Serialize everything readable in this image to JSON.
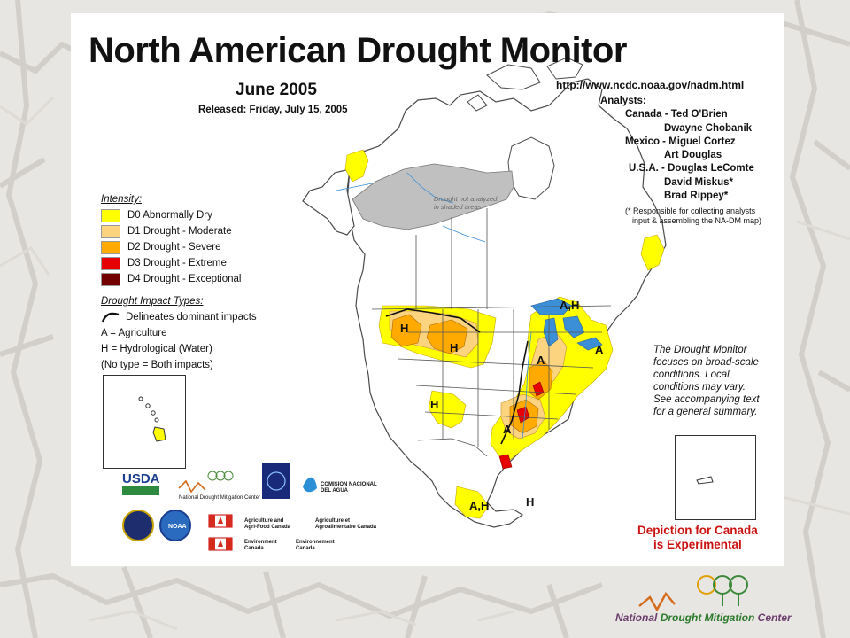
{
  "colors": {
    "d0": "#ffff00",
    "d1": "#fcd37f",
    "d2": "#ffaa00",
    "d3": "#e60000",
    "d4": "#730000",
    "not_analyzed": "#c0c0c0",
    "experimental": "#cc1111"
  },
  "map": {
    "title": "North American Drought Monitor",
    "month": "June 2005",
    "released": "Released:  Friday, July 15, 2005",
    "url": "http://www.ncdc.noaa.gov/nadm.html",
    "not_analyzed_note_1": "Drought not analyzed",
    "not_analyzed_note_2": "in shaded areas"
  },
  "analysts": {
    "header": "Analysts:",
    "canada_1": "Canada - Ted O'Brien",
    "canada_2": "Dwayne Chobanik",
    "mexico_1": "Mexico - Miguel Cortez",
    "mexico_2": "Art Douglas",
    "usa_1": "U.S.A. - Douglas LeComte",
    "usa_2": "David Miskus*",
    "usa_3": "Brad Rippey*",
    "note_1": "(* Responsible for collecting analysts",
    "note_2": "input & assembling the NA-DM map)"
  },
  "legend": {
    "header": "Intensity:",
    "items": [
      {
        "label": "D0 Abnormally Dry",
        "color": "#ffff00"
      },
      {
        "label": "D1 Drought - Moderate",
        "color": "#fcd37f"
      },
      {
        "label": "D2 Drought - Severe",
        "color": "#ffaa00"
      },
      {
        "label": "D3 Drought - Extreme",
        "color": "#e60000"
      },
      {
        "label": "D4 Drought - Exceptional",
        "color": "#730000"
      }
    ]
  },
  "impacts": {
    "header": "Drought Impact Types:",
    "delineates": "Delineates dominant impacts",
    "a_def": "A = Agriculture",
    "h_def": "H = Hydrological (Water)",
    "none": "(No type = Both impacts)"
  },
  "map_labels": {
    "ah_1": "A,H",
    "h_1": "H",
    "h_2": "H",
    "a_1": "A",
    "a_2": "A",
    "h_3": "H",
    "a_3": "A",
    "ah_2": "A,H",
    "h_4": "H"
  },
  "focus_note": {
    "l1": "The Drought Monitor",
    "l2": "focuses on broad-scale",
    "l3": "conditions.  Local",
    "l4": "conditions may vary.",
    "l5": "See accompanying text",
    "l6": "for a general summary."
  },
  "experimental": {
    "l1": "Depiction for Canada",
    "l2": "is Experimental"
  },
  "logos": {
    "usda": "USDA",
    "ndmc_small": "National Drought Mitigation Center",
    "conagua_1": "COMISION NACIONAL",
    "conagua_2": "DEL AGUA",
    "agr_en_1": "Agriculture and",
    "agr_en_2": "Agri-Food Canada",
    "agr_fr_1": "Agriculture et",
    "agr_fr_2": "Agroalimentaire Canada",
    "env_en_1": "Environment",
    "env_en_2": "Canada",
    "env_fr_1": "Environnement",
    "env_fr_2": "Canada",
    "noaa": "NOAA"
  },
  "footer": {
    "national": "National",
    "drought": "Drought Mitigation",
    "center": "Center"
  }
}
